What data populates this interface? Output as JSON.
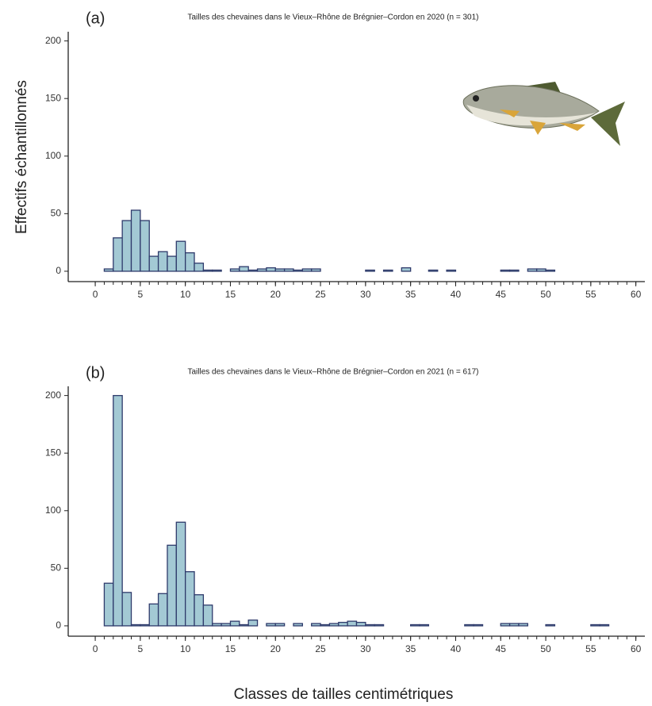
{
  "y_label": "Effectifs échantillonnés",
  "x_label": "Classes de tailles centimétriques",
  "chart_data": [
    {
      "type": "histogram",
      "panel": "(a)",
      "title": "Tailles des chevaines dans le Vieux–Rhône de Brégnier–Cordon en 2020  (n = 301)",
      "bins": [
        0,
        1,
        2,
        3,
        4,
        5,
        6,
        7,
        8,
        9,
        10,
        11,
        12,
        13,
        14,
        15,
        16,
        17,
        18,
        19,
        20,
        21,
        22,
        23,
        24,
        25,
        26,
        27,
        28,
        29,
        30,
        31,
        32,
        33,
        34,
        35,
        36,
        37,
        38,
        39,
        40,
        41,
        42,
        43,
        44,
        45,
        46,
        47,
        48,
        49,
        50,
        51,
        52,
        53,
        54,
        55,
        56,
        57,
        58,
        59,
        60
      ],
      "values": [
        0,
        2,
        29,
        44,
        53,
        44,
        13,
        17,
        13,
        26,
        16,
        7,
        1,
        1,
        0,
        2,
        4,
        1,
        2,
        3,
        2,
        2,
        1,
        2,
        2,
        0,
        0,
        0,
        0,
        0,
        1,
        0,
        1,
        0,
        3,
        0,
        0,
        1,
        0,
        1,
        0,
        0,
        0,
        0,
        0,
        1,
        1,
        0,
        2,
        2,
        1,
        0,
        0,
        0,
        0,
        0,
        0,
        0,
        0,
        0
      ],
      "color": "#a3c9d4",
      "edge_color": "#2e3a6b",
      "xlim": [
        -3,
        61
      ],
      "ylim": [
        -9,
        208
      ],
      "xticks": [
        0,
        5,
        10,
        15,
        20,
        25,
        30,
        35,
        40,
        45,
        50,
        55,
        60
      ],
      "yticks": [
        0,
        50,
        100,
        150,
        200
      ]
    },
    {
      "type": "histogram",
      "panel": "(b)",
      "title": "Tailles des chevaines dans le Vieux–Rhône de Brégnier–Cordon en 2021  (n = 617)",
      "bins": [
        0,
        1,
        2,
        3,
        4,
        5,
        6,
        7,
        8,
        9,
        10,
        11,
        12,
        13,
        14,
        15,
        16,
        17,
        18,
        19,
        20,
        21,
        22,
        23,
        24,
        25,
        26,
        27,
        28,
        29,
        30,
        31,
        32,
        33,
        34,
        35,
        36,
        37,
        38,
        39,
        40,
        41,
        42,
        43,
        44,
        45,
        46,
        47,
        48,
        49,
        50,
        51,
        52,
        53,
        54,
        55,
        56,
        57,
        58,
        59,
        60
      ],
      "values": [
        0,
        37,
        200,
        29,
        1,
        1,
        19,
        28,
        70,
        90,
        47,
        27,
        18,
        2,
        2,
        4,
        1,
        5,
        0,
        2,
        2,
        0,
        2,
        0,
        2,
        1,
        2,
        3,
        4,
        3,
        1,
        1,
        0,
        0,
        0,
        1,
        1,
        0,
        0,
        0,
        0,
        1,
        1,
        0,
        0,
        2,
        2,
        2,
        0,
        0,
        1,
        0,
        0,
        0,
        0,
        1,
        1,
        0,
        0,
        0
      ],
      "color": "#a3c9d4",
      "edge_color": "#2e3a6b",
      "xlim": [
        -3,
        61
      ],
      "ylim": [
        -9,
        208
      ],
      "xticks": [
        0,
        5,
        10,
        15,
        20,
        25,
        30,
        35,
        40,
        45,
        50,
        55,
        60
      ],
      "yticks": [
        0,
        50,
        100,
        150,
        200
      ]
    }
  ]
}
